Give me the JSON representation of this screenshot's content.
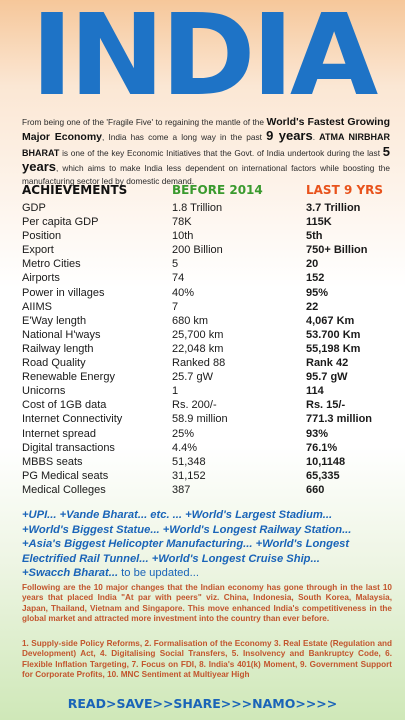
{
  "title": "INDIA",
  "intro": {
    "p1": "From being one of the 'Fragile Five' to regaining the mantle of the ",
    "p2": "World's Fastest Growing Major Economy",
    "p3": ", India has come a long way in the past ",
    "p4": "9 years",
    "p5": ". ",
    "p6": "ATMA NIRBHAR BHARAT",
    "p7": " is one of the key Economic Initiatives that the Govt. of India undertook during the last ",
    "p8": "5 years",
    "p9": ", which aims to make India less dependent on international factors while boosting the manufacturing sector led by domestic demand."
  },
  "table": {
    "headers": [
      "ACHIEVEMENTS",
      "BEFORE 2014",
      "LAST 9 YRS"
    ],
    "header_colors": [
      "#111111",
      "#3a9a2e",
      "#e8521b"
    ],
    "rows": [
      [
        "GDP",
        "1.8 Trillion",
        "3.7 Trillion"
      ],
      [
        "Per capita GDP",
        "78K",
        "115K"
      ],
      [
        "Position",
        "10th",
        "5th"
      ],
      [
        "Export",
        "200 Billion",
        "750+ Billion"
      ],
      [
        "Metro Cities",
        "5",
        "20"
      ],
      [
        "Airports",
        "74",
        "152"
      ],
      [
        "Power in villages",
        "40%",
        "95%"
      ],
      [
        "AIIMS",
        "7",
        "22"
      ],
      [
        "E'Way length",
        "680 km",
        "4,067 Km"
      ],
      [
        "National H'ways",
        "25,700 km",
        "53.700 Km"
      ],
      [
        "Railway length",
        "22,048 km",
        "55,198 Km"
      ],
      [
        "Road Quality",
        "Ranked 88",
        "Rank 42"
      ],
      [
        "Renewable Energy",
        "25.7 gW",
        "95.7 gW"
      ],
      [
        "Unicorns",
        "1",
        "114"
      ],
      [
        "Cost of 1GB data",
        "Rs. 200/-",
        "Rs. 15/-"
      ],
      [
        "Internet Connectivity",
        "58.9 million",
        "771.3 million"
      ],
      [
        "Internet spread",
        "25%",
        "93%"
      ],
      [
        "Digital transactions",
        "4.4%",
        "76.1%"
      ],
      [
        "MBBS seats",
        "51,348",
        "10,1148"
      ],
      [
        "PG Medical seats",
        "31,152",
        "65,335"
      ],
      [
        "Medical Colleges",
        "387",
        "660"
      ]
    ]
  },
  "hashtags": {
    "line1": "+UPI... +Vande Bharat... etc. ... +World's Largest Stadium...",
    "line2": "+World's Biggest Statue... +World's Longest Railway Station...",
    "line3": "+Asia's Biggest Helicopter Manufacturing... +World's Longest",
    "line4": "Electrified Rail Tunnel... +World's Longest Cruise Ship...",
    "line5": "+Swacch Bharat...",
    "line5_tail": " to be updated..."
  },
  "summary": "Following are the 10 major changes that the Indian economy has gone through in the last 10 years that placed India \"At par with peers\" viz. China, Indonesia, South Korea, Malaysia, Japan, Thailand, Vietnam and Singapore. This move enhanced India's competitiveness in the global market and attracted more investment into the country than ever before.",
  "changes": "1. Supply-side Policy Reforms, 2. Formalisation of the Economy 3. Real Estate (Regulation and Development) Act, 4. Digitalising Social Transfers, 5. Insolvency and Bankruptcy Code, 6. Flexible Inflation Targeting, 7. Focus on FDI, 8. India's 401(k) Moment, 9. Government Support for Corporate Profits, 10. MNC Sentiment at Multiyear High",
  "footer": "READ>SAVE>>SHARE>>>NAMO>>>>",
  "colors": {
    "title": "#1e73c6",
    "hashtags": "#1a64b8",
    "summary": "#c2552d"
  }
}
